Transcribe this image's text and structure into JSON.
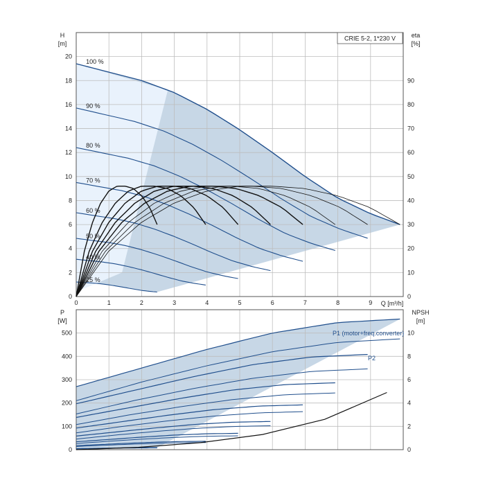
{
  "colors": {
    "curve_blue": "#1f4e8c",
    "area_fill": "#c7d7e6",
    "area_light": "#e9f2fc",
    "eta_black": "#111111",
    "grid": "#bdbdbd"
  },
  "chart_data": [
    {
      "type": "line",
      "title": "CRIE 5-2, 1*230 V",
      "xlabel": "Q [m³/h]",
      "x_tick_labels": [
        "0",
        "1",
        "2",
        "3",
        "4",
        "5",
        "6",
        "7",
        "8",
        "9"
      ],
      "xlim": [
        0,
        10
      ],
      "ylabel_left": "H",
      "ylabel_left_unit": "[m]",
      "ylim_left": [
        0,
        22
      ],
      "y_left_tick_labels": [
        "0",
        "2",
        "4",
        "6",
        "8",
        "10",
        "12",
        "14",
        "16",
        "18",
        "20"
      ],
      "ylabel_right": "eta",
      "ylabel_right_unit": "[%]",
      "ylim_right": [
        0,
        110
      ],
      "y_right_tick_labels": [
        "0",
        "10",
        "20",
        "30",
        "40",
        "50",
        "60",
        "70",
        "80",
        "90"
      ],
      "grid": true,
      "speed_labels": [
        "100 %",
        "90 %",
        "80 %",
        "70 %",
        "60 %",
        "50 %",
        "40 %",
        "25 %"
      ],
      "speed_fractions": [
        1.0,
        0.9,
        0.8,
        0.7,
        0.6,
        0.5,
        0.4,
        0.25
      ],
      "head_curves_100pct": {
        "x": [
          0,
          2,
          3,
          4,
          5,
          6,
          7,
          8,
          9,
          9.9
        ],
        "y": [
          19.4,
          18.0,
          17.0,
          15.6,
          13.9,
          12.0,
          10.0,
          8.2,
          6.9,
          6.0
        ]
      },
      "eta_curves_100pct": {
        "x": [
          0,
          1,
          2,
          3,
          4,
          5,
          6,
          7,
          8,
          9,
          9.9
        ],
        "y": [
          0,
          19,
          31,
          39,
          44,
          46,
          46,
          45,
          42,
          37,
          30
        ]
      },
      "operating_area": "shaded region between 25 % and 100 % speed, limited by Q ≈ 10 m³/h"
    },
    {
      "type": "line",
      "ylabel_left": "P",
      "ylabel_left_unit": "[W]",
      "ylim_left": [
        0,
        600
      ],
      "y_left_tick_labels": [
        "0",
        "100",
        "200",
        "300",
        "400",
        "500"
      ],
      "ylabel_right": "NPSH",
      "ylabel_right_unit": "[m]",
      "ylim_right": [
        0,
        12
      ],
      "y_right_tick_labels": [
        "0",
        "2",
        "4",
        "6",
        "8",
        "10"
      ],
      "xlim": [
        0,
        10
      ],
      "grid": true,
      "series_labels": [
        "P1 (motor+freq.converter)",
        "P2"
      ],
      "p1_100pct": {
        "x": [
          0,
          2,
          4,
          6,
          8,
          9.9
        ],
        "y": [
          270,
          350,
          430,
          500,
          545,
          560
        ]
      },
      "p2_100pct": {
        "x": [
          0,
          2,
          4,
          6,
          8,
          9.9
        ],
        "y": [
          210,
          290,
          360,
          420,
          460,
          475
        ]
      },
      "npsh": {
        "x": [
          0,
          2,
          4,
          6,
          8,
          10
        ],
        "y": [
          0.0,
          0.2,
          0.6,
          1.3,
          2.6,
          4.9
        ]
      }
    }
  ]
}
